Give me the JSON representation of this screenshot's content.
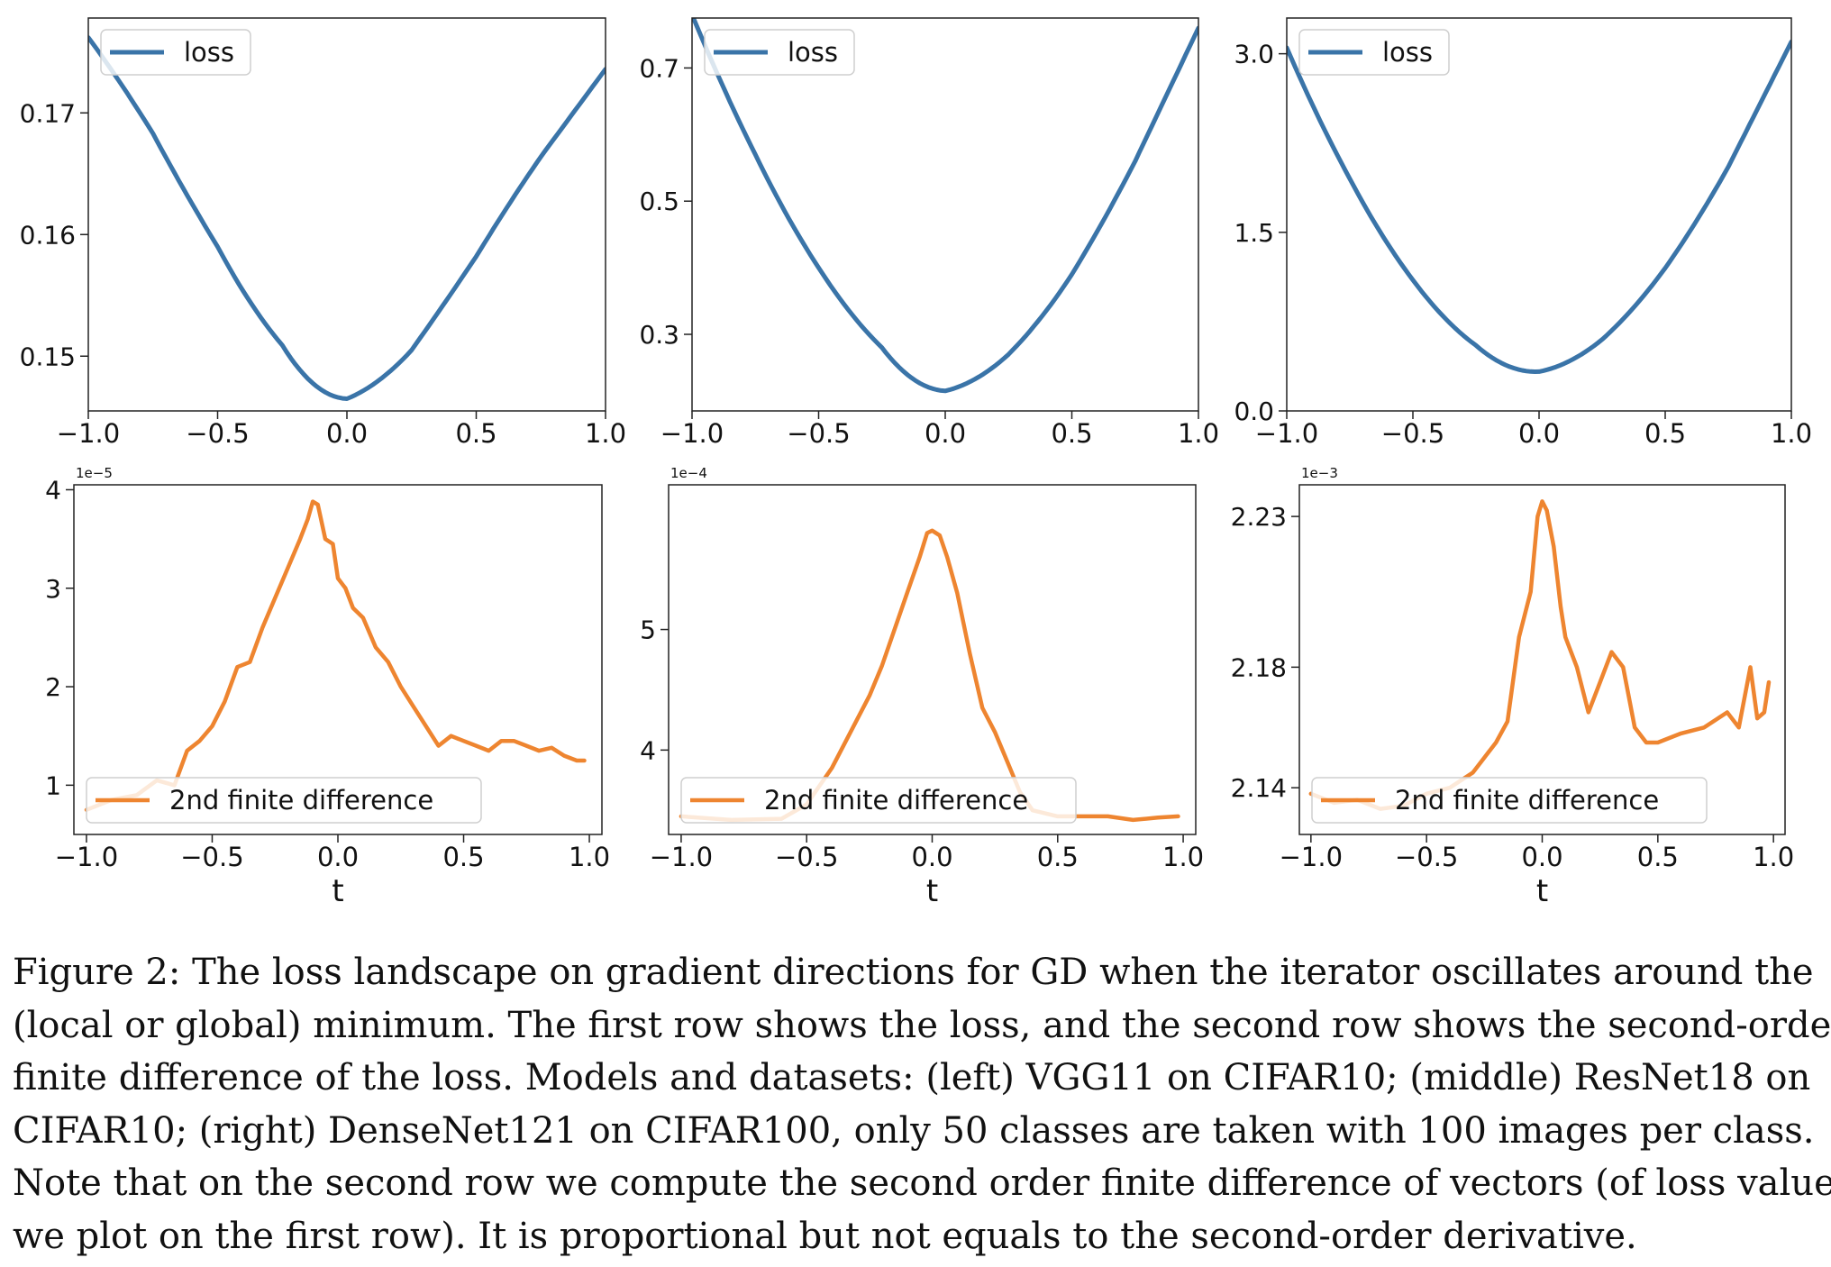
{
  "colors": {
    "loss": "#3a74a8",
    "fd": "#ee8530"
  },
  "chart_data": [
    {
      "type": "line",
      "row": 1,
      "col": 1,
      "xlim": [
        -1.0,
        1.0
      ],
      "ylim": [
        0.1455,
        0.1778
      ],
      "xticks": [
        -1.0,
        -0.5,
        0.0,
        0.5,
        1.0
      ],
      "xtick_labels": [
        "−1.0",
        "−0.5",
        "0.0",
        "0.5",
        "1.0"
      ],
      "yticks": [
        0.15,
        0.16,
        0.17
      ],
      "ytick_labels": [
        "0.15",
        "0.16",
        "0.17"
      ],
      "exponent": "",
      "xlabel": "",
      "legend": "top-left",
      "series": [
        {
          "name": "loss",
          "color": "#3a74a8",
          "x": [
            -1.0,
            -0.75,
            -0.5,
            -0.25,
            0.0,
            0.25,
            0.5,
            0.75,
            1.0
          ],
          "y": [
            0.1762,
            0.1683,
            0.159,
            0.1509,
            0.1465,
            0.1505,
            0.1582,
            0.1664,
            0.1736
          ]
        }
      ]
    },
    {
      "type": "line",
      "row": 1,
      "col": 2,
      "xlim": [
        -1.0,
        1.0
      ],
      "ylim": [
        0.185,
        0.775
      ],
      "xticks": [
        -1.0,
        -0.5,
        0.0,
        0.5,
        1.0
      ],
      "xtick_labels": [
        "−1.0",
        "−0.5",
        "0.0",
        "0.5",
        "1.0"
      ],
      "yticks": [
        0.3,
        0.5,
        0.7
      ],
      "ytick_labels": [
        "0.3",
        "0.5",
        "0.7"
      ],
      "exponent": "",
      "xlabel": "",
      "legend": "top-left",
      "series": [
        {
          "name": "loss",
          "color": "#3a74a8",
          "x": [
            -1.0,
            -0.75,
            -0.5,
            -0.25,
            0.0,
            0.25,
            0.5,
            0.75,
            1.0
          ],
          "y": [
            0.78,
            0.57,
            0.4,
            0.28,
            0.215,
            0.27,
            0.39,
            0.56,
            0.76
          ]
        }
      ]
    },
    {
      "type": "line",
      "row": 1,
      "col": 3,
      "xlim": [
        -1.0,
        1.0
      ],
      "ylim": [
        0.0,
        3.3
      ],
      "xticks": [
        -1.0,
        -0.5,
        0.0,
        0.5,
        1.0
      ],
      "xtick_labels": [
        "−1.0",
        "−0.5",
        "0.0",
        "0.5",
        "1.0"
      ],
      "yticks": [
        0.0,
        1.5,
        3.0
      ],
      "ytick_labels": [
        "0.0",
        "1.5",
        "3.0"
      ],
      "exponent": "",
      "xlabel": "",
      "legend": "top-left",
      "series": [
        {
          "name": "loss",
          "color": "#3a74a8",
          "x": [
            -1.0,
            -0.75,
            -0.5,
            -0.25,
            0.0,
            0.25,
            0.5,
            0.75,
            1.0
          ],
          "y": [
            3.05,
            1.95,
            1.1,
            0.55,
            0.33,
            0.6,
            1.2,
            2.05,
            3.1
          ]
        }
      ]
    },
    {
      "type": "line",
      "row": 2,
      "col": 1,
      "xlim": [
        -1.05,
        1.05
      ],
      "ylim": [
        0.5,
        4.05
      ],
      "xticks": [
        -1.0,
        -0.5,
        0.0,
        0.5,
        1.0
      ],
      "xtick_labels": [
        "−1.0",
        "−0.5",
        "0.0",
        "0.5",
        "1.0"
      ],
      "yticks": [
        1,
        2,
        3,
        4
      ],
      "ytick_labels": [
        "1",
        "2",
        "3",
        "4"
      ],
      "exponent": "1e−5",
      "xlabel": "t",
      "legend": "lower-left",
      "series": [
        {
          "name": "2nd finite difference",
          "color": "#ee8530",
          "x": [
            -1.0,
            -0.9,
            -0.8,
            -0.72,
            -0.65,
            -0.6,
            -0.55,
            -0.5,
            -0.45,
            -0.4,
            -0.35,
            -0.3,
            -0.25,
            -0.2,
            -0.15,
            -0.12,
            -0.1,
            -0.08,
            -0.05,
            -0.02,
            0.0,
            0.03,
            0.06,
            0.1,
            0.15,
            0.2,
            0.25,
            0.3,
            0.35,
            0.4,
            0.45,
            0.5,
            0.55,
            0.6,
            0.65,
            0.7,
            0.75,
            0.8,
            0.85,
            0.9,
            0.95,
            0.98
          ],
          "y": [
            0.75,
            0.85,
            0.9,
            1.05,
            1.0,
            1.35,
            1.45,
            1.6,
            1.85,
            2.2,
            2.25,
            2.6,
            2.9,
            3.2,
            3.5,
            3.7,
            3.88,
            3.85,
            3.5,
            3.45,
            3.1,
            3.0,
            2.8,
            2.7,
            2.4,
            2.25,
            2.0,
            1.8,
            1.6,
            1.4,
            1.5,
            1.45,
            1.4,
            1.35,
            1.45,
            1.45,
            1.4,
            1.35,
            1.38,
            1.3,
            1.25,
            1.25
          ]
        }
      ]
    },
    {
      "type": "line",
      "row": 2,
      "col": 2,
      "xlim": [
        -1.05,
        1.05
      ],
      "ylim": [
        3.3,
        6.2
      ],
      "xticks": [
        -1.0,
        -0.5,
        0.0,
        0.5,
        1.0
      ],
      "xtick_labels": [
        "−1.0",
        "−0.5",
        "0.0",
        "0.5",
        "1.0"
      ],
      "yticks": [
        4,
        5
      ],
      "ytick_labels": [
        "4",
        "5"
      ],
      "exponent": "1e−4",
      "xlabel": "t",
      "legend": "lower-left",
      "series": [
        {
          "name": "2nd finite difference",
          "color": "#ee8530",
          "x": [
            -1.0,
            -0.8,
            -0.6,
            -0.5,
            -0.4,
            -0.3,
            -0.25,
            -0.2,
            -0.15,
            -0.1,
            -0.05,
            -0.02,
            0.0,
            0.03,
            0.06,
            0.1,
            0.15,
            0.2,
            0.25,
            0.3,
            0.35,
            0.4,
            0.5,
            0.6,
            0.7,
            0.8,
            0.9,
            0.98
          ],
          "y": [
            3.45,
            3.42,
            3.43,
            3.55,
            3.85,
            4.25,
            4.45,
            4.7,
            5.0,
            5.3,
            5.6,
            5.8,
            5.82,
            5.78,
            5.6,
            5.3,
            4.8,
            4.35,
            4.15,
            3.9,
            3.65,
            3.5,
            3.45,
            3.45,
            3.45,
            3.42,
            3.44,
            3.45
          ]
        }
      ]
    },
    {
      "type": "line",
      "row": 2,
      "col": 3,
      "xlim": [
        -1.05,
        1.05
      ],
      "ylim": [
        2.1245,
        2.2405
      ],
      "xticks": [
        -1.0,
        -0.5,
        0.0,
        0.5,
        1.0
      ],
      "xtick_labels": [
        "−1.0",
        "−0.5",
        "0.0",
        "0.5",
        "1.0"
      ],
      "yticks": [
        2.14,
        2.18,
        2.23
      ],
      "ytick_labels": [
        "2.14",
        "2.18",
        "2.23"
      ],
      "exponent": "1e−3",
      "xlabel": "t",
      "legend": "lower-left",
      "series": [
        {
          "name": "2nd finite difference",
          "color": "#ee8530",
          "x": [
            -1.0,
            -0.9,
            -0.8,
            -0.7,
            -0.6,
            -0.5,
            -0.4,
            -0.3,
            -0.25,
            -0.2,
            -0.15,
            -0.1,
            -0.05,
            -0.02,
            0.0,
            0.02,
            0.05,
            0.08,
            0.1,
            0.15,
            0.2,
            0.25,
            0.3,
            0.35,
            0.4,
            0.45,
            0.5,
            0.6,
            0.7,
            0.8,
            0.85,
            0.9,
            0.93,
            0.96,
            0.98
          ],
          "y": [
            2.138,
            2.135,
            2.136,
            2.133,
            2.134,
            2.138,
            2.14,
            2.145,
            2.15,
            2.155,
            2.162,
            2.19,
            2.205,
            2.23,
            2.235,
            2.232,
            2.22,
            2.2,
            2.19,
            2.18,
            2.165,
            2.175,
            2.185,
            2.18,
            2.16,
            2.155,
            2.155,
            2.158,
            2.16,
            2.165,
            2.16,
            2.18,
            2.163,
            2.165,
            2.175
          ]
        }
      ]
    }
  ],
  "caption": [
    "Figure 2: The loss landscape on gradient directions for GD when the iterator oscillates around the",
    "(local or global) minimum. The first row shows the loss, and the second row shows the second-order",
    "finite difference of the loss. Models and datasets: (left) VGG11 on CIFAR10; (middle) ResNet18 on",
    "CIFAR10; (right) DenseNet121 on CIFAR100, only 50 classes are taken with 100 images per class.",
    "Note that on the second row we compute the second order finite difference of vectors (of loss values",
    "we plot on the first row). It is proportional but not equals to the second-order derivative."
  ]
}
